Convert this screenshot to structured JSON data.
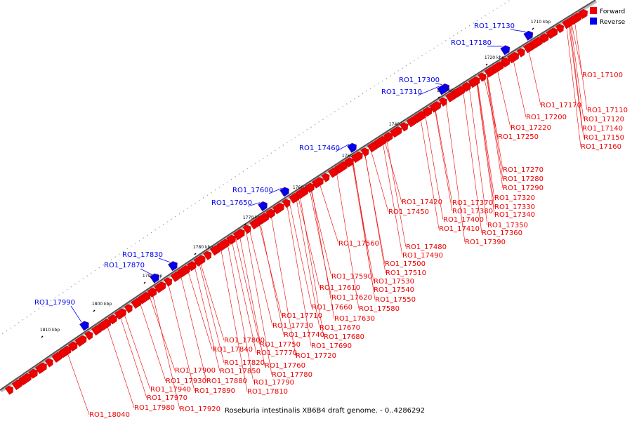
{
  "diagram": {
    "caption": "Roseburia intestinalis XB6B4 draft genome. - 0..4286292",
    "legend": [
      {
        "label": "Forward",
        "color": "#ee0000"
      },
      {
        "label": "Reverse",
        "color": "#0000ee"
      }
    ],
    "kbp_ticks": [
      "1710 kbp",
      "1720 kbp",
      "1730 kbp",
      "1740 kbp",
      "1750 kbp",
      "1760 kbp",
      "1770 kbp",
      "1780 kbp",
      "1790 kbp",
      "1800 kbp",
      "1810 kbp"
    ],
    "reverse_genes": [
      "RO1_17130",
      "RO1_17180",
      "RO1_17300",
      "RO1_17310",
      "RO1_17460",
      "RO1_17600",
      "RO1_17650",
      "RO1_17830",
      "RO1_17870",
      "RO1_17990"
    ],
    "forward_genes": [
      "RO1_17100",
      "RO1_17110",
      "RO1_17120",
      "RO1_17140",
      "RO1_17150",
      "RO1_17160",
      "RO1_17170",
      "RO1_17200",
      "RO1_17220",
      "RO1_17250",
      "RO1_17270",
      "RO1_17280",
      "RO1_17290",
      "RO1_17320",
      "RO1_17330",
      "RO1_17340",
      "RO1_17350",
      "RO1_17360",
      "RO1_17370",
      "RO1_17380",
      "RO1_17390",
      "RO1_17400",
      "RO1_17410",
      "RO1_17420",
      "RO1_17450",
      "RO1_17480",
      "RO1_17490",
      "RO1_17500",
      "RO1_17510",
      "RO1_17530",
      "RO1_17540",
      "RO1_17550",
      "RO1_17560",
      "RO1_17580",
      "RO1_17590",
      "RO1_17610",
      "RO1_17620",
      "RO1_17630",
      "RO1_17660",
      "RO1_17670",
      "RO1_17680",
      "RO1_17690",
      "RO1_17710",
      "RO1_17720",
      "RO1_17730",
      "RO1_17740",
      "RO1_17750",
      "RO1_17760",
      "RO1_17770",
      "RO1_17780",
      "RO1_17790",
      "RO1_17800",
      "RO1_17810",
      "RO1_17820",
      "RO1_17840",
      "RO1_17850",
      "RO1_17880",
      "RO1_17890",
      "RO1_17900",
      "RO1_17920",
      "RO1_17930",
      "RO1_17940",
      "RO1_17970",
      "RO1_17980",
      "RO1_18040"
    ]
  }
}
